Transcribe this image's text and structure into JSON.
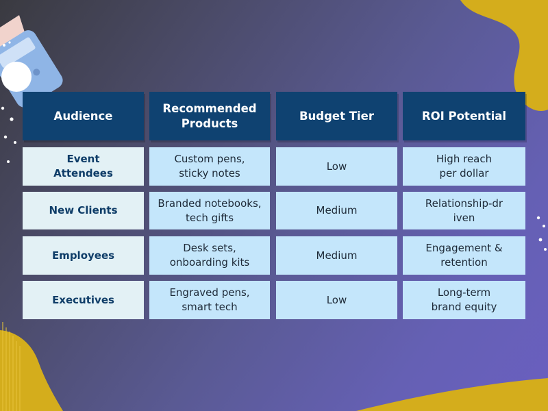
{
  "table": {
    "headers": [
      "Audience",
      "Recommended Products",
      "Budget Tier",
      "ROI Potential"
    ],
    "rows": [
      {
        "audience": "Event Attendees",
        "products": "Custom pens, sticky notes",
        "budget": "Low",
        "roi": "High reach per dollar"
      },
      {
        "audience": "New Clients",
        "products": "Branded notebooks, tech gifts",
        "budget": "Medium",
        "roi": "Relationship-driven"
      },
      {
        "audience": "Employees",
        "products": "Desk sets, onboarding kits",
        "budget": "Medium",
        "roi": "Engagement & retention"
      },
      {
        "audience": "Executives",
        "products": "Engraved pens, smart tech",
        "budget": "Low",
        "roi": "Long-term brand equity"
      }
    ]
  },
  "colors": {
    "header_bg": "#0f4271",
    "rowhead_bg": "#e3f1f5",
    "cell_bg": "#c4e6fb",
    "accent_yellow": "#d4ad1c",
    "calculator_blue": "#8fb5e6"
  }
}
